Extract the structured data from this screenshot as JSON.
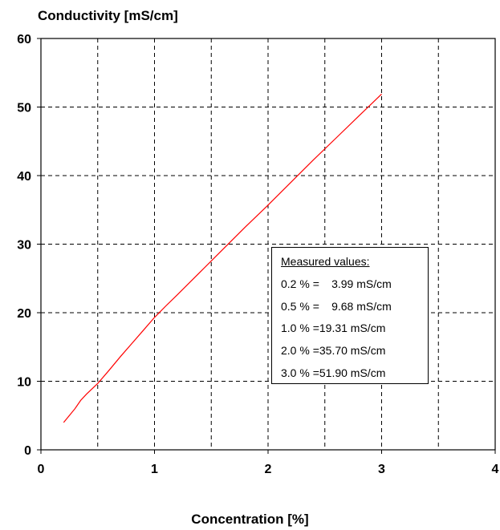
{
  "chart_data": {
    "type": "line",
    "title": "",
    "ylabel": "Conductivity [mS/cm]",
    "xlabel": "Concentration [%]",
    "xlim": [
      0,
      4
    ],
    "ylim": [
      0,
      60
    ],
    "x_ticks": [
      0,
      1,
      2,
      3,
      4
    ],
    "x_tick_labels": [
      "0",
      "1",
      "2",
      "3",
      "4"
    ],
    "y_ticks": [
      0,
      10,
      20,
      30,
      40,
      50,
      60
    ],
    "y_tick_labels": [
      "0",
      "10",
      "20",
      "30",
      "40",
      "50",
      "60"
    ],
    "x_grid_step": 0.5,
    "y_grid_step": 10,
    "grid": "dashed",
    "line_color": "#ff0000",
    "series": [
      {
        "x": [
          0.2,
          0.25,
          0.3,
          0.35,
          0.4,
          0.5,
          0.6,
          0.7,
          0.8,
          0.9,
          1.0,
          1.1,
          1.2,
          1.4,
          1.6,
          1.8,
          2.0,
          2.2,
          2.4,
          2.6,
          2.8,
          3.0
        ],
        "y": [
          3.99,
          5.0,
          6.0,
          7.2,
          8.1,
          9.68,
          11.6,
          13.6,
          15.5,
          17.4,
          19.31,
          21.0,
          22.6,
          25.9,
          29.2,
          32.5,
          35.7,
          39.0,
          42.3,
          45.5,
          48.7,
          51.9
        ]
      }
    ],
    "legend": {
      "placement": "center-right",
      "title": "Measured values:",
      "entries": [
        {
          "conc": "0.2 % =",
          "value": "3.99 mS/cm"
        },
        {
          "conc": "0.5 % =",
          "value": "9.68 mS/cm"
        },
        {
          "conc": "1.0 % =",
          "value": "19.31 mS/cm"
        },
        {
          "conc": "2.0 % =",
          "value": "35.70 mS/cm"
        },
        {
          "conc": "3.0 % =",
          "value": "51.90 mS/cm"
        }
      ]
    }
  }
}
